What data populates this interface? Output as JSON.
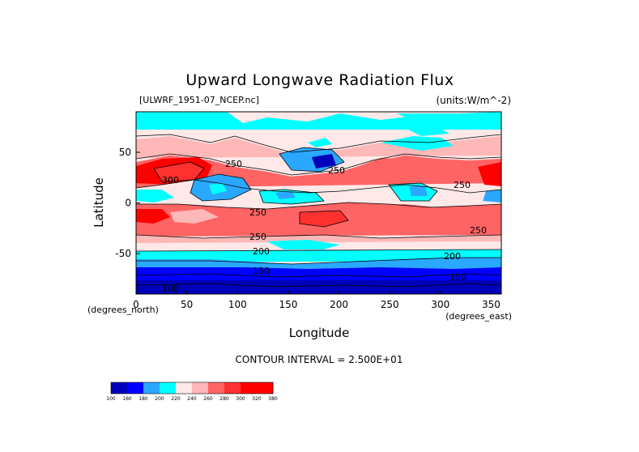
{
  "chart_data": {
    "type": "heatmap",
    "title": "Upward Longwave Radiation Flux",
    "subtitle_left": "[ULWRF_1951-07_NCEP.nc]",
    "subtitle_right": "(units:W/m^-2)",
    "xlabel": "Longitude",
    "ylabel": "Latitude",
    "x_unit_label": "(degrees_east)",
    "y_unit_label": "(degrees_north)",
    "xlim": [
      0,
      360
    ],
    "ylim": [
      -90,
      90
    ],
    "x_ticks": [
      0,
      50,
      100,
      150,
      200,
      250,
      300,
      350
    ],
    "y_ticks": [
      -50,
      0,
      50
    ],
    "contour_interval_text": "CONTOUR INTERVAL = 2.500E+01",
    "contour_labels": [
      "100",
      "150",
      "200",
      "250",
      "300"
    ],
    "colorbar": {
      "levels": [
        100,
        160,
        180,
        200,
        220,
        240,
        260,
        280,
        300,
        320,
        380
      ],
      "level_labels": [
        "100",
        "160",
        "180",
        "200",
        "220",
        "240",
        "260",
        "280",
        "300",
        "320",
        "380"
      ],
      "colors": [
        "#0000bb",
        "#0000ff",
        "#2aa8ff",
        "#00ffff",
        "#ffe8e8",
        "#ffb8b8",
        "#ff6464",
        "#ff3030",
        "#ff0000",
        "#ff0000"
      ]
    },
    "latitude_bands": [
      {
        "lat_range": [
          70,
          90
        ],
        "value": "220-260"
      },
      {
        "lat_range": [
          40,
          70
        ],
        "value": "240-280"
      },
      {
        "lat_range": [
          10,
          40
        ],
        "value": "280-320"
      },
      {
        "lat_range": [
          -10,
          10
        ],
        "value": "200-280"
      },
      {
        "lat_range": [
          -35,
          -10
        ],
        "value": "260-300"
      },
      {
        "lat_range": [
          -50,
          -35
        ],
        "value": "200-240"
      },
      {
        "lat_range": [
          -70,
          -50
        ],
        "value": "160-200"
      },
      {
        "lat_range": [
          -90,
          -70
        ],
        "value": "100-160"
      }
    ]
  }
}
